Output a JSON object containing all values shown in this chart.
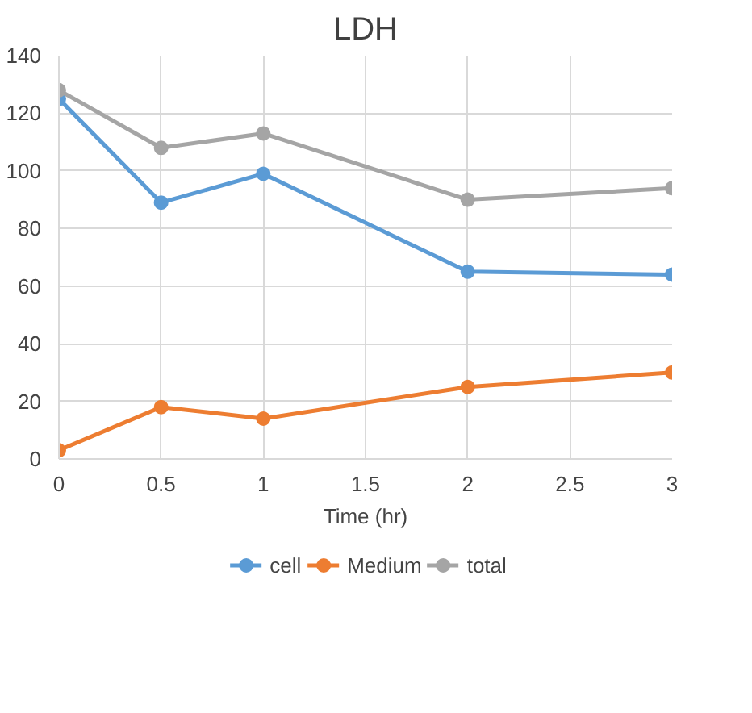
{
  "chart_data": {
    "type": "line",
    "title": "LDH",
    "xlabel": "Time (hr)",
    "x": [
      0,
      0.5,
      1,
      2,
      3
    ],
    "series": [
      {
        "name": "cell",
        "color": "#5b9bd5",
        "values": [
          125,
          89,
          99,
          65,
          64
        ]
      },
      {
        "name": "Medium",
        "color": "#ed7d31",
        "values": [
          3,
          18,
          14,
          25,
          30
        ]
      },
      {
        "name": "total",
        "color": "#a5a5a5",
        "values": [
          128,
          108,
          113,
          90,
          94
        ]
      }
    ],
    "xlim": [
      0,
      3
    ],
    "xticks": [
      0,
      0.5,
      1,
      1.5,
      2,
      2.5,
      3
    ],
    "ylim": [
      0,
      140
    ],
    "yticks": [
      0,
      20,
      40,
      60,
      80,
      100,
      120,
      140
    ],
    "grid": true,
    "legend": "bottom",
    "marker": "circle",
    "line_style": "solid"
  }
}
